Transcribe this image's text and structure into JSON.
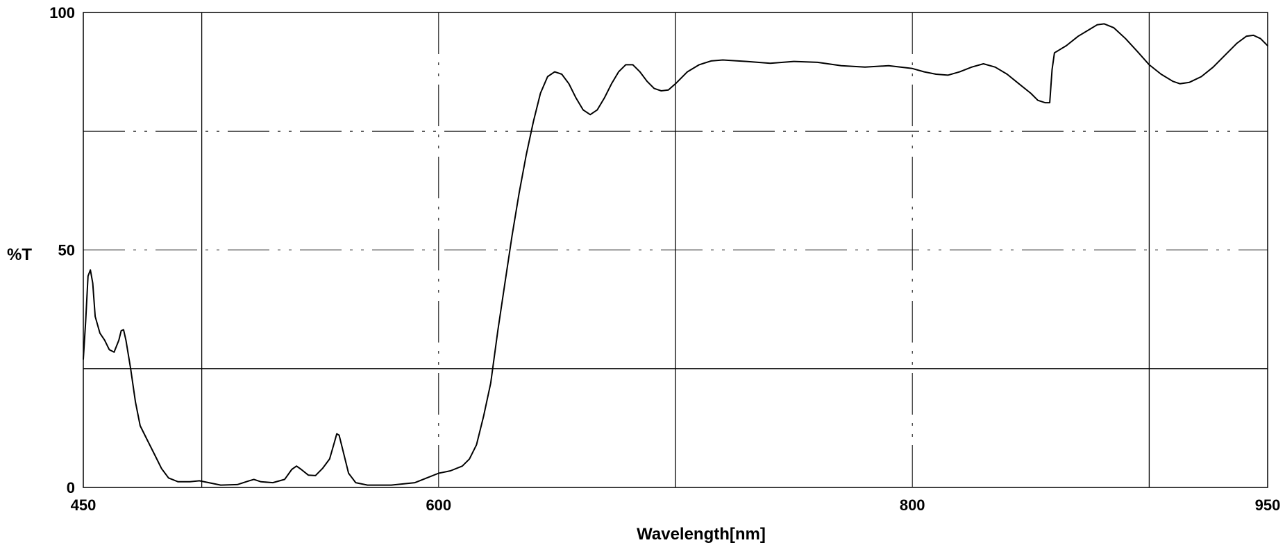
{
  "chart_data": {
    "type": "line",
    "title": "",
    "xlabel": "Wavelength[nm]",
    "ylabel": "%T",
    "xlim": [
      450,
      950
    ],
    "ylim": [
      0,
      100
    ],
    "x_tick_labels": [
      "450",
      "600",
      "800",
      "950"
    ],
    "y_tick_labels": [
      "0",
      "50",
      "100"
    ],
    "x_ticks": [
      450,
      600,
      800,
      950
    ],
    "y_ticks": [
      0,
      50,
      100
    ],
    "grid": true,
    "grid_x_solid": [
      500,
      700,
      900
    ],
    "grid_x_dashed": [
      600,
      800
    ],
    "grid_y_solid": [
      25
    ],
    "grid_y_dashed": [
      50,
      75
    ],
    "line_color": "#000000",
    "series": [
      {
        "values": [
          [
            450,
            27.0
          ],
          [
            451,
            35.0
          ],
          [
            452,
            44.5
          ],
          [
            453,
            45.8
          ],
          [
            454,
            43.0
          ],
          [
            455,
            36.0
          ],
          [
            457,
            32.5
          ],
          [
            459,
            31.0
          ],
          [
            461,
            29.0
          ],
          [
            463,
            28.5
          ],
          [
            465,
            31.0
          ],
          [
            466,
            33.0
          ],
          [
            467,
            33.2
          ],
          [
            468,
            31.0
          ],
          [
            470,
            25.0
          ],
          [
            472,
            18.0
          ],
          [
            474,
            13.0
          ],
          [
            477,
            10.0
          ],
          [
            480,
            7.0
          ],
          [
            483,
            4.0
          ],
          [
            486,
            2.0
          ],
          [
            490,
            1.2
          ],
          [
            495,
            1.2
          ],
          [
            499,
            1.4
          ],
          [
            503,
            1.0
          ],
          [
            508,
            0.5
          ],
          [
            515,
            0.6
          ],
          [
            520,
            1.4
          ],
          [
            522,
            1.7
          ],
          [
            525,
            1.2
          ],
          [
            530,
            1.0
          ],
          [
            535,
            1.7
          ],
          [
            538,
            3.8
          ],
          [
            540,
            4.5
          ],
          [
            542,
            3.8
          ],
          [
            545,
            2.6
          ],
          [
            548,
            2.5
          ],
          [
            551,
            4.0
          ],
          [
            554,
            6.0
          ],
          [
            556,
            9.5
          ],
          [
            557,
            11.3
          ],
          [
            558,
            11.0
          ],
          [
            560,
            7.0
          ],
          [
            562,
            3.0
          ],
          [
            565,
            1.0
          ],
          [
            570,
            0.5
          ],
          [
            580,
            0.5
          ],
          [
            590,
            1.0
          ],
          [
            595,
            2.0
          ],
          [
            600,
            3.0
          ],
          [
            605,
            3.5
          ],
          [
            610,
            4.5
          ],
          [
            613,
            6.0
          ],
          [
            616,
            9.0
          ],
          [
            619,
            15.0
          ],
          [
            622,
            22.0
          ],
          [
            625,
            33.0
          ],
          [
            628,
            43.0
          ],
          [
            631,
            53.0
          ],
          [
            634,
            62.0
          ],
          [
            637,
            70.0
          ],
          [
            640,
            77.0
          ],
          [
            643,
            83.0
          ],
          [
            646,
            86.5
          ],
          [
            649,
            87.5
          ],
          [
            652,
            87.0
          ],
          [
            655,
            85.0
          ],
          [
            658,
            82.0
          ],
          [
            661,
            79.5
          ],
          [
            664,
            78.5
          ],
          [
            667,
            79.5
          ],
          [
            670,
            82.0
          ],
          [
            673,
            85.0
          ],
          [
            676,
            87.5
          ],
          [
            679,
            89.0
          ],
          [
            682,
            89.0
          ],
          [
            685,
            87.5
          ],
          [
            688,
            85.5
          ],
          [
            691,
            84.0
          ],
          [
            694,
            83.5
          ],
          [
            697,
            83.7
          ],
          [
            700,
            85.0
          ],
          [
            705,
            87.5
          ],
          [
            710,
            89.0
          ],
          [
            715,
            89.8
          ],
          [
            720,
            90.0
          ],
          [
            730,
            89.7
          ],
          [
            740,
            89.3
          ],
          [
            750,
            89.7
          ],
          [
            760,
            89.5
          ],
          [
            770,
            88.8
          ],
          [
            780,
            88.5
          ],
          [
            790,
            88.8
          ],
          [
            800,
            88.2
          ],
          [
            805,
            87.5
          ],
          [
            810,
            87.0
          ],
          [
            815,
            86.8
          ],
          [
            820,
            87.5
          ],
          [
            825,
            88.5
          ],
          [
            830,
            89.2
          ],
          [
            835,
            88.5
          ],
          [
            840,
            87.0
          ],
          [
            845,
            85.0
          ],
          [
            850,
            83.0
          ],
          [
            853,
            81.5
          ],
          [
            856,
            81.0
          ],
          [
            858,
            81.0
          ],
          [
            859,
            88.0
          ],
          [
            860,
            91.5
          ],
          [
            865,
            93.0
          ],
          [
            870,
            95.0
          ],
          [
            875,
            96.5
          ],
          [
            878,
            97.4
          ],
          [
            881,
            97.6
          ],
          [
            885,
            96.8
          ],
          [
            890,
            94.5
          ],
          [
            895,
            91.8
          ],
          [
            900,
            89.0
          ],
          [
            905,
            87.0
          ],
          [
            910,
            85.5
          ],
          [
            913,
            85.0
          ],
          [
            917,
            85.3
          ],
          [
            922,
            86.5
          ],
          [
            927,
            88.5
          ],
          [
            932,
            91.0
          ],
          [
            937,
            93.5
          ],
          [
            941,
            95.0
          ],
          [
            944,
            95.2
          ],
          [
            947,
            94.5
          ],
          [
            950,
            93.0
          ]
        ]
      }
    ]
  }
}
